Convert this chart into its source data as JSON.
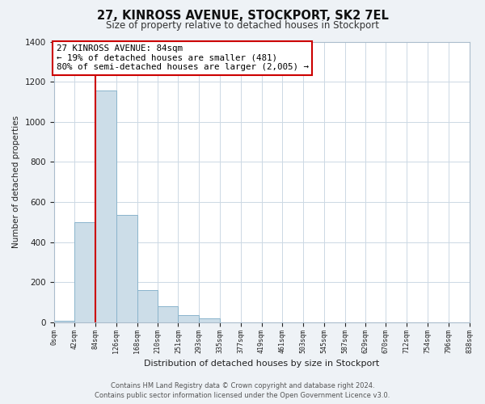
{
  "title": "27, KINROSS AVENUE, STOCKPORT, SK2 7EL",
  "subtitle": "Size of property relative to detached houses in Stockport",
  "xlabel": "Distribution of detached houses by size in Stockport",
  "ylabel": "Number of detached properties",
  "bin_edges": [
    0,
    42,
    84,
    126,
    168,
    210,
    251,
    293,
    335,
    377,
    419,
    461,
    503,
    545,
    587,
    629,
    670,
    712,
    754,
    796,
    838
  ],
  "bar_heights": [
    10,
    500,
    1155,
    535,
    160,
    82,
    35,
    20,
    0,
    0,
    0,
    0,
    0,
    0,
    0,
    0,
    0,
    0,
    0,
    0
  ],
  "bar_color": "#ccdde8",
  "bar_edge_color": "#8ab4cc",
  "property_value": 84,
  "marker_line_color": "#cc0000",
  "annotation_line1": "27 KINROSS AVENUE: 84sqm",
  "annotation_line2": "← 19% of detached houses are smaller (481)",
  "annotation_line3": "80% of semi-detached houses are larger (2,005) →",
  "annotation_box_color": "#ffffff",
  "annotation_box_edge_color": "#cc0000",
  "ylim": [
    0,
    1400
  ],
  "yticks": [
    0,
    200,
    400,
    600,
    800,
    1000,
    1200,
    1400
  ],
  "tick_labels": [
    "0sqm",
    "42sqm",
    "84sqm",
    "126sqm",
    "168sqm",
    "210sqm",
    "251sqm",
    "293sqm",
    "335sqm",
    "377sqm",
    "419sqm",
    "461sqm",
    "503sqm",
    "545sqm",
    "587sqm",
    "629sqm",
    "670sqm",
    "712sqm",
    "754sqm",
    "796sqm",
    "838sqm"
  ],
  "footer_line1": "Contains HM Land Registry data © Crown copyright and database right 2024.",
  "footer_line2": "Contains public sector information licensed under the Open Government Licence v3.0.",
  "bg_color": "#eef2f6",
  "plot_bg_color": "#ffffff",
  "grid_color": "#ccd8e4"
}
